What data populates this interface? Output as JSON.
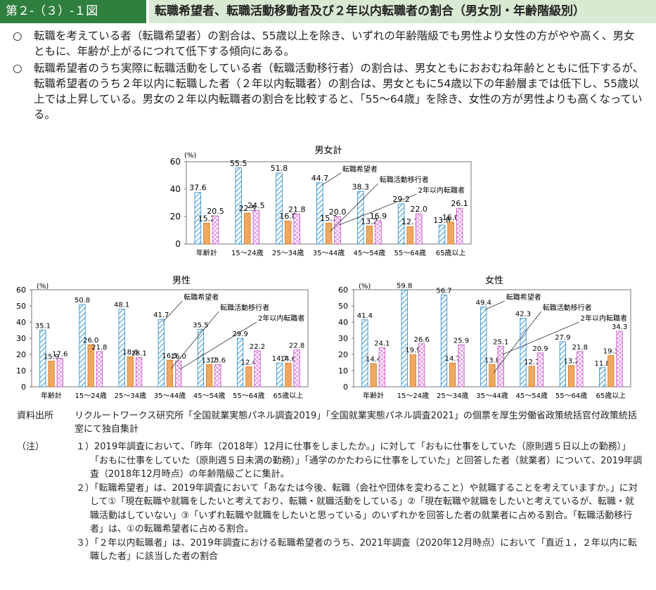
{
  "header": {
    "badge": "第２-（３）-１図",
    "title": "転職希望者、転職活動移動者及び２年以内転職者の割合（男女別・年齢階級別）"
  },
  "summary": [
    {
      "bullet": "○",
      "text": "転職を考えている者（転職希望者）の割合は、55歳以上を除き、いずれの年齢階級でも男性より女性の方がやや高く、男女ともに、年齢が上がるにつれて低下する傾向にある。"
    },
    {
      "bullet": "○",
      "text": "転職希望者のうち実際に転職活動をしている者（転職活動移行者）の割合は、男女ともにおおむね年齢とともに低下するが、転職希望者のうち２年以内に転職した者（２年以内転職者）の割合は、男女ともに54歳以下の年齢層までは低下し、55歳以上では上昇している。男女の２年以内転職者の割合を比較すると、「55～64歳」を除き、女性の方が男性よりも高くなっている。"
    }
  ],
  "colors": {
    "header_green": "#2f7f3f",
    "header_light": "#d9ead3",
    "series1": "#4ea8dc",
    "series2": "#f0a050",
    "series3": "#e07ae0"
  },
  "chart_data": [
    {
      "type": "bar",
      "title": "男女計",
      "unit": "(%)",
      "ylim": [
        0,
        60
      ],
      "yticks": [
        0,
        20,
        40,
        60
      ],
      "categories": [
        "年齢計",
        "15～24歳",
        "25～34歳",
        "35～44歳",
        "45～54歳",
        "55～64歳",
        "65歳以上"
      ],
      "series": [
        {
          "name": "転職希望者",
          "values": [
            37.6,
            55.5,
            51.8,
            44.7,
            38.3,
            29.2,
            13.8
          ]
        },
        {
          "name": "転職活動移行者",
          "values": [
            15.2,
            22.5,
            16.8,
            15.3,
            13.2,
            12.7,
            16.0
          ]
        },
        {
          "name": "2年以内転職者",
          "values": [
            20.5,
            24.5,
            21.8,
            20.0,
            16.9,
            22.0,
            26.1
          ]
        }
      ]
    },
    {
      "type": "bar",
      "title": "男性",
      "unit": "(%)",
      "ylim": [
        0,
        60
      ],
      "yticks": [
        0,
        10,
        20,
        30,
        40,
        50,
        60
      ],
      "categories": [
        "年齢計",
        "15～24歳",
        "25～34歳",
        "35～44歳",
        "45～54歳",
        "55～64歳",
        "65歳以上"
      ],
      "series": [
        {
          "name": "転職希望者",
          "values": [
            35.1,
            50.8,
            48.1,
            41.7,
            35.5,
            29.9,
            14.7
          ]
        },
        {
          "name": "転職活動移行者",
          "values": [
            15.9,
            26.0,
            18.6,
            16.5,
            13.7,
            12.4,
            14.6
          ]
        },
        {
          "name": "2年以内転職者",
          "values": [
            17.6,
            21.8,
            18.1,
            16.0,
            13.6,
            22.2,
            22.8
          ]
        }
      ]
    },
    {
      "type": "bar",
      "title": "女性",
      "unit": "(%)",
      "ylim": [
        0,
        60
      ],
      "yticks": [
        0,
        10,
        20,
        30,
        40,
        50,
        60
      ],
      "categories": [
        "年齢計",
        "15～24歳",
        "25～34歳",
        "35～44歳",
        "45～54歳",
        "55～64歳",
        "65歳以上"
      ],
      "series": [
        {
          "name": "転職希望者",
          "values": [
            41.4,
            59.8,
            56.7,
            49.4,
            42.3,
            27.9,
            11.8
          ]
        },
        {
          "name": "転職活動移行者",
          "values": [
            14.4,
            19.9,
            14.7,
            13.8,
            12.7,
            13.2,
            19.3
          ]
        },
        {
          "name": "2年以内転職者",
          "values": [
            24.1,
            26.6,
            25.9,
            25.1,
            20.9,
            21.8,
            34.3
          ]
        }
      ]
    }
  ],
  "source": {
    "label": "資料出所",
    "text": "リクルートワークス研究所「全国就業実態パネル調査2019」「全国就業実態パネル調査2021」の個票を厚生労働省政策統括官付政策統括室にて独自集計"
  },
  "notes": {
    "label": "（注）",
    "items": [
      "１）2019年調査において、「昨年（2018年）12月に仕事をしましたか。」に対して「おもに仕事をしていた（原則週５日以上の勤務）」「おもに仕事をしていた（原則週５日未満の勤務）」「通学のかたわらに仕事をしていた」と回答した者（就業者）について、2019年調査（2018年12月時点）の年齢階級ごとに集計。",
      "２）「転職希望者」は、2019年調査において「あなたは今後、転職（会社や団体を変わること）や就職することを考えていますか。」に対して①「現在転職や就職をしたいと考えており、転職・就職活動をしている」②「現在転職や就職をしたいと考えているが、転職・就職活動はしていない」③「いずれ転職や就職をしたいと思っている」のいずれかを回答した者の就業者に占める割合。「転職活動移行者」は、①の転職希望者に占める割合。",
      "３）「２年以内転職者」は、2019年調査における転職希望者のうち、2021年調査（2020年12月時点）において「直近１，２年以内に転職した者」に該当した者の割合"
    ]
  }
}
